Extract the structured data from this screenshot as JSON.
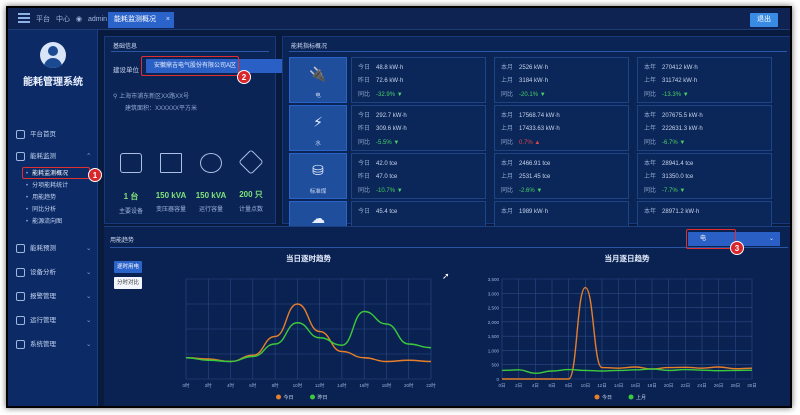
{
  "topbar": {
    "links": [
      "平台",
      "中心",
      "admin"
    ],
    "tab_label": "能耗监测概况",
    "tab_close": "×",
    "logout_label": "退出"
  },
  "sidebar": {
    "system_name": "能耗管理系统",
    "items": [
      {
        "label": "平台首页"
      },
      {
        "label": "能耗监测"
      },
      {
        "label": "能耗预测"
      },
      {
        "label": "设备分析"
      },
      {
        "label": "报警管理"
      },
      {
        "label": "运行管理"
      },
      {
        "label": "系统管理"
      }
    ],
    "subitems": [
      {
        "label": "能耗监测概况"
      },
      {
        "label": "分项能耗统计"
      },
      {
        "label": "用能趋势"
      },
      {
        "label": "同比分析"
      },
      {
        "label": "能源流向图"
      }
    ]
  },
  "markers": {
    "m1": "1",
    "m2": "2",
    "m3": "3"
  },
  "basic": {
    "title": "基础信息",
    "company_label": "建设单位",
    "company_value": "安徽鼎吉电气股份有限公司A区",
    "location": "上海市浦东新区XX路XX号",
    "area": "建筑面积：XXXXXX平方米",
    "stats": [
      {
        "value": "1 台",
        "label": "主要设备"
      },
      {
        "value": "150 kVA",
        "label": "变压器容量"
      },
      {
        "value": "150 kVA",
        "label": "运行容量"
      },
      {
        "value": "200 只",
        "label": "计量点数"
      }
    ]
  },
  "overview": {
    "title": "能耗指标概况",
    "rows": [
      {
        "name": "电",
        "cells": [
          {
            "l1k": "今日",
            "l1": "48.8 kW·h",
            "l2k": "昨日",
            "l2": "72.6 kW·h",
            "l3k": "同比",
            "l3": "-32.9%",
            "dir": "down"
          },
          {
            "l1k": "本月",
            "l1": "2526 kW·h",
            "l2k": "上月",
            "l2": "3184 kW·h",
            "l3k": "同比",
            "l3": "-20.1%",
            "dir": "down"
          },
          {
            "l1k": "本年",
            "l1": "270412 kW·h",
            "l2k": "上年",
            "l2": "311742 kW·h",
            "l3k": "同比",
            "l3": "-13.3%",
            "dir": "down"
          }
        ]
      },
      {
        "name": "水",
        "cells": [
          {
            "l1k": "今日",
            "l1": "292.7 kW·h",
            "l2k": "昨日",
            "l2": "309.6 kW·h",
            "l3k": "同比",
            "l3": "-5.5%",
            "dir": "down"
          },
          {
            "l1k": "本月",
            "l1": "17568.74 kW·h",
            "l2k": "上月",
            "l2": "17433.63 kW·h",
            "l3k": "同比",
            "l3": "0.7%",
            "dir": "up"
          },
          {
            "l1k": "本年",
            "l1": "207675.5 kW·h",
            "l2k": "上年",
            "l2": "222631.3 kW·h",
            "l3k": "同比",
            "l3": "-6.7%",
            "dir": "down"
          }
        ]
      },
      {
        "name": "标准煤",
        "cells": [
          {
            "l1k": "今日",
            "l1": "42.0 tce",
            "l2k": "昨日",
            "l2": "47.0 tce",
            "l3k": "同比",
            "l3": "-10.7%",
            "dir": "down"
          },
          {
            "l1k": "本月",
            "l1": "2466.91 tce",
            "l2k": "上月",
            "l2": "2531.45 tce",
            "l3k": "同比",
            "l3": "-2.6%",
            "dir": "down"
          },
          {
            "l1k": "本年",
            "l1": "28941.4 tce",
            "l2k": "上年",
            "l2": "31350.0 tce",
            "l3k": "同比",
            "l3": "-7.7%",
            "dir": "down"
          }
        ]
      },
      {
        "name": "碳排",
        "cells": [
          {
            "l1k": "今日",
            "l1": "45.4 tce",
            "l2k": "",
            "l2": "",
            "l3k": "",
            "l3": "",
            "dir": "down"
          },
          {
            "l1k": "本月",
            "l1": "1989 kW·h",
            "l2k": "",
            "l2": "",
            "l3k": "",
            "l3": "",
            "dir": "down"
          },
          {
            "l1k": "本年",
            "l1": "28971.2 kW·h",
            "l2k": "",
            "l2": "",
            "l3k": "",
            "l3": "",
            "dir": "down"
          }
        ]
      }
    ]
  },
  "trend": {
    "title": "用能趋势",
    "type_value": "电",
    "toggle_on": "逐时用电",
    "toggle_off": "分时对比"
  },
  "colors": {
    "today": "#e57f2a",
    "yesterday": "#3cc93c"
  },
  "chart_data": [
    {
      "type": "line",
      "title": "当日逐时趋势",
      "categories": [
        "0时",
        "2时",
        "4时",
        "6时",
        "8时",
        "10时",
        "12时",
        "14时",
        "16时",
        "18时",
        "20时",
        "22时"
      ],
      "ylim": [
        0,
        80
      ],
      "grid": true,
      "legend": "bottom",
      "series": [
        {
          "name": "今日",
          "values": [
            17,
            16,
            14,
            19,
            34,
            60,
            38,
            22,
            17,
            14,
            15,
            14
          ]
        },
        {
          "name": "昨日",
          "values": [
            17,
            15,
            14,
            18,
            28,
            45,
            33,
            27,
            54,
            44,
            28,
            25
          ]
        }
      ]
    },
    {
      "type": "line",
      "title": "当月逐日趋势",
      "categories": [
        "0日",
        "2日",
        "4日",
        "6日",
        "8日",
        "10日",
        "12日",
        "14日",
        "16日",
        "18日",
        "20日",
        "22日",
        "24日",
        "26日",
        "28日",
        "30日"
      ],
      "ylim": [
        0,
        3500
      ],
      "yticks": [
        "0",
        "500",
        "1,000",
        "1,500",
        "2,000",
        "2,500",
        "3,000",
        "3,500"
      ],
      "grid": true,
      "legend": "bottom",
      "series": [
        {
          "name": "今日",
          "values": [
            0,
            0,
            0,
            0,
            0,
            3200,
            400,
            380,
            420,
            350,
            400,
            410,
            380,
            420,
            360,
            380
          ]
        },
        {
          "name": "上月",
          "values": [
            300,
            320,
            200,
            280,
            330,
            300,
            280,
            300,
            320,
            350,
            300,
            330,
            310,
            290,
            300,
            310
          ]
        }
      ]
    }
  ]
}
